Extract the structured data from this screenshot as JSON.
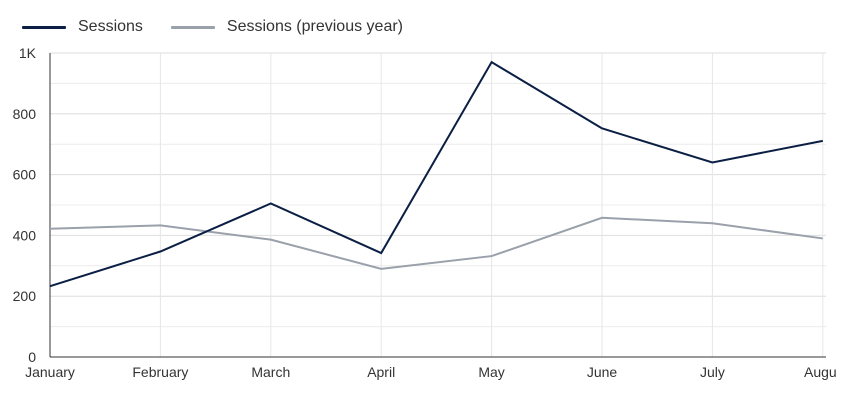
{
  "chart_data": {
    "type": "line",
    "categories": [
      "January",
      "February",
      "March",
      "April",
      "May",
      "June",
      "July",
      "August"
    ],
    "x_tick_labels": [
      "January",
      "February",
      "March",
      "April",
      "May",
      "June",
      "July",
      "Augu"
    ],
    "series": [
      {
        "name": "Sessions",
        "color": "#0b1f44",
        "values": [
          233,
          347,
          505,
          342,
          970,
          752,
          640,
          711
        ]
      },
      {
        "name": "Sessions (previous year)",
        "color": "#9aa1ab",
        "values": [
          422,
          433,
          386,
          290,
          332,
          458,
          440,
          390
        ]
      }
    ],
    "y_ticks": [
      {
        "value": 0,
        "label": "0"
      },
      {
        "value": 200,
        "label": "200"
      },
      {
        "value": 400,
        "label": "400"
      },
      {
        "value": 600,
        "label": "600"
      },
      {
        "value": 800,
        "label": "800"
      },
      {
        "value": 1000,
        "label": "1K"
      }
    ],
    "ylim": [
      0,
      1000
    ],
    "grid": true,
    "legend_position": "top-left",
    "title": "",
    "xlabel": "",
    "ylabel": ""
  }
}
